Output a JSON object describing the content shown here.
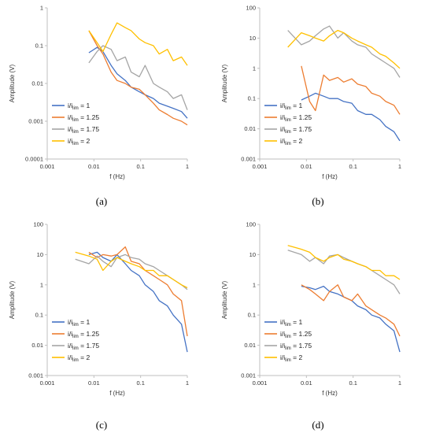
{
  "figure": {
    "captions": [
      "(a)",
      "(b)",
      "(c)",
      "(d)"
    ]
  },
  "legend": [
    {
      "prefix": "i/i",
      "sub": "lim",
      "suffix": " = 1",
      "color": "#4472C4"
    },
    {
      "prefix": "i/i",
      "sub": "lim",
      "suffix": " = 1.25",
      "color": "#ED7D31"
    },
    {
      "prefix": "i/i",
      "sub": "lim",
      "suffix": " = 1.75",
      "color": "#A5A5A5"
    },
    {
      "prefix": "i/i",
      "sub": "lim",
      "suffix": " = 2",
      "color": "#FFC000"
    }
  ],
  "chart_data": [
    {
      "type": "line",
      "xlabel": "f (Hz)",
      "ylabel": "Amplitude (V)",
      "xscale": "log",
      "yscale": "log",
      "xlim": [
        0.001,
        1
      ],
      "ylim": [
        0.0001,
        1
      ],
      "xticks": [
        "0.001",
        "0.01",
        "0.1",
        "1"
      ],
      "yticks": [
        "0.0001",
        "0.001",
        "0.01",
        "0.1",
        "1"
      ],
      "legend_position": "bottom-left",
      "grid": false,
      "series": [
        {
          "name": "i/ilim = 1",
          "color": "#4472C4",
          "x": [
            0.0078,
            0.0117,
            0.0156,
            0.0234,
            0.0313,
            0.0469,
            0.0625,
            0.0938,
            0.125,
            0.1875,
            0.25,
            0.375,
            0.5,
            0.75,
            1.0
          ],
          "y": [
            0.065,
            0.09,
            0.07,
            0.03,
            0.018,
            0.012,
            0.008,
            0.006,
            0.005,
            0.004,
            0.003,
            0.0025,
            0.0022,
            0.0018,
            0.0012
          ]
        },
        {
          "name": "i/ilim = 1.25",
          "color": "#ED7D31",
          "x": [
            0.0078,
            0.0117,
            0.0156,
            0.0234,
            0.0313,
            0.0469,
            0.0625,
            0.0938,
            0.125,
            0.1875,
            0.25,
            0.375,
            0.5,
            0.75,
            1.0
          ],
          "y": [
            0.25,
            0.1,
            0.06,
            0.02,
            0.012,
            0.01,
            0.008,
            0.007,
            0.005,
            0.003,
            0.002,
            0.0015,
            0.0012,
            0.001,
            0.0008
          ]
        },
        {
          "name": "i/ilim = 1.75",
          "color": "#A5A5A5",
          "x": [
            0.0078,
            0.0117,
            0.0156,
            0.0234,
            0.0313,
            0.0469,
            0.0625,
            0.0938,
            0.125,
            0.1875,
            0.25,
            0.375,
            0.5,
            0.75,
            1.0
          ],
          "y": [
            0.035,
            0.07,
            0.1,
            0.08,
            0.04,
            0.05,
            0.02,
            0.015,
            0.03,
            0.01,
            0.008,
            0.006,
            0.004,
            0.005,
            0.002
          ]
        },
        {
          "name": "i/ilim = 2",
          "color": "#FFC000",
          "x": [
            0.0078,
            0.0117,
            0.0156,
            0.0234,
            0.0313,
            0.0469,
            0.0625,
            0.0938,
            0.125,
            0.1875,
            0.25,
            0.375,
            0.5,
            0.75,
            1.0
          ],
          "y": [
            0.25,
            0.12,
            0.07,
            0.2,
            0.4,
            0.3,
            0.25,
            0.15,
            0.12,
            0.1,
            0.06,
            0.08,
            0.04,
            0.05,
            0.03
          ]
        }
      ]
    },
    {
      "type": "line",
      "xlabel": "f (Hz)",
      "ylabel": "Amplitude (V)",
      "xscale": "log",
      "yscale": "log",
      "xlim": [
        0.001,
        1
      ],
      "ylim": [
        0.001,
        100
      ],
      "xticks": [
        "0.001",
        "0.01",
        "0.1",
        "1"
      ],
      "yticks": [
        "0.001",
        "0.01",
        "0.1",
        "1",
        "10",
        "100"
      ],
      "legend_position": "bottom-left",
      "grid": false,
      "series": [
        {
          "name": "i/ilim = 1",
          "color": "#4472C4",
          "x": [
            0.0078,
            0.0117,
            0.0156,
            0.0234,
            0.0313,
            0.0469,
            0.0625,
            0.0938,
            0.125,
            0.1875,
            0.25,
            0.375,
            0.5,
            0.75,
            1.0
          ],
          "y": [
            0.09,
            0.12,
            0.15,
            0.12,
            0.1,
            0.1,
            0.08,
            0.07,
            0.04,
            0.03,
            0.03,
            0.02,
            0.012,
            0.008,
            0.004
          ]
        },
        {
          "name": "i/ilim = 1.25",
          "color": "#ED7D31",
          "x": [
            0.0078,
            0.0117,
            0.0156,
            0.0234,
            0.0313,
            0.0469,
            0.0625,
            0.0938,
            0.125,
            0.1875,
            0.25,
            0.375,
            0.5,
            0.75,
            1.0
          ],
          "y": [
            1.2,
            0.08,
            0.04,
            0.6,
            0.4,
            0.5,
            0.35,
            0.45,
            0.3,
            0.25,
            0.15,
            0.12,
            0.08,
            0.06,
            0.03
          ]
        },
        {
          "name": "i/ilim = 1.75",
          "color": "#A5A5A5",
          "x": [
            0.004,
            0.0078,
            0.0117,
            0.0156,
            0.0234,
            0.0313,
            0.0469,
            0.0625,
            0.0938,
            0.125,
            0.1875,
            0.25,
            0.375,
            0.5,
            0.75,
            1.0
          ],
          "y": [
            18,
            6,
            8,
            12,
            20,
            25,
            10,
            15,
            8,
            6,
            5,
            3,
            2,
            1.5,
            1,
            0.5
          ]
        },
        {
          "name": "i/ilim = 2",
          "color": "#FFC000",
          "x": [
            0.004,
            0.0078,
            0.0117,
            0.0156,
            0.0234,
            0.0313,
            0.0469,
            0.0625,
            0.0938,
            0.125,
            0.1875,
            0.25,
            0.375,
            0.5,
            0.75,
            1.0
          ],
          "y": [
            5,
            15,
            12,
            10,
            8,
            12,
            18,
            15,
            10,
            8,
            6,
            5,
            3,
            2.5,
            1.5,
            1
          ]
        }
      ]
    },
    {
      "type": "line",
      "xlabel": "f (Hz)",
      "ylabel": "Amplitude (V)",
      "xscale": "log",
      "yscale": "log",
      "xlim": [
        0.001,
        1
      ],
      "ylim": [
        0.001,
        100
      ],
      "xticks": [
        "0.001",
        "0.01",
        "0.1",
        "1"
      ],
      "yticks": [
        "0.001",
        "0.01",
        "0.1",
        "1",
        "10",
        "100"
      ],
      "legend_position": "bottom-left",
      "grid": false,
      "series": [
        {
          "name": "i/ilim = 1",
          "color": "#4472C4",
          "x": [
            0.0078,
            0.0117,
            0.0156,
            0.0234,
            0.0313,
            0.0469,
            0.0625,
            0.0938,
            0.125,
            0.1875,
            0.25,
            0.375,
            0.5,
            0.75,
            1.0
          ],
          "y": [
            10,
            12,
            8,
            6,
            10,
            5,
            3,
            2,
            1,
            0.6,
            0.3,
            0.2,
            0.1,
            0.05,
            0.006
          ]
        },
        {
          "name": "i/ilim = 1.25",
          "color": "#ED7D31",
          "x": [
            0.0078,
            0.0117,
            0.0156,
            0.0234,
            0.0313,
            0.0469,
            0.0625,
            0.0938,
            0.125,
            0.1875,
            0.25,
            0.375,
            0.5,
            0.75,
            1.0
          ],
          "y": [
            12,
            8,
            10,
            9,
            10,
            18,
            6,
            5,
            3,
            2,
            1.5,
            1,
            0.5,
            0.3,
            0.02
          ]
        },
        {
          "name": "i/ilim = 1.75",
          "color": "#A5A5A5",
          "x": [
            0.004,
            0.0078,
            0.0117,
            0.0156,
            0.0234,
            0.0313,
            0.0469,
            0.0625,
            0.0938,
            0.125,
            0.1875,
            0.25,
            0.375,
            0.5,
            0.75,
            1.0
          ],
          "y": [
            7,
            5,
            9,
            6,
            4,
            8,
            10,
            8,
            7,
            5,
            4,
            3,
            2,
            1.5,
            1,
            0.7
          ]
        },
        {
          "name": "i/ilim = 2",
          "color": "#FFC000",
          "x": [
            0.004,
            0.0078,
            0.0117,
            0.0156,
            0.0234,
            0.0313,
            0.0469,
            0.0625,
            0.0938,
            0.125,
            0.1875,
            0.25,
            0.375,
            0.5,
            0.75,
            1.0
          ],
          "y": [
            12,
            9,
            7,
            3,
            6,
            8,
            6,
            5,
            4,
            3,
            3,
            2,
            2,
            1.5,
            1,
            0.8
          ]
        }
      ]
    },
    {
      "type": "line",
      "xlabel": "f (Hz)",
      "ylabel": "Amplitude (V)",
      "xscale": "log",
      "yscale": "log",
      "xlim": [
        0.001,
        1
      ],
      "ylim": [
        0.001,
        100
      ],
      "xticks": [
        "0.001",
        "0.01",
        "0.1",
        "1"
      ],
      "yticks": [
        "0.001",
        "0.01",
        "0.1",
        "1",
        "10",
        "100"
      ],
      "legend_position": "bottom-left",
      "grid": false,
      "series": [
        {
          "name": "i/ilim = 1",
          "color": "#4472C4",
          "x": [
            0.0078,
            0.0117,
            0.0156,
            0.0234,
            0.0313,
            0.0469,
            0.0625,
            0.0938,
            0.125,
            0.1875,
            0.25,
            0.375,
            0.5,
            0.75,
            1.0
          ],
          "y": [
            0.9,
            0.8,
            0.7,
            0.9,
            0.6,
            0.5,
            0.4,
            0.3,
            0.2,
            0.15,
            0.1,
            0.08,
            0.05,
            0.03,
            0.006
          ]
        },
        {
          "name": "i/ilim = 1.25",
          "color": "#ED7D31",
          "x": [
            0.0078,
            0.0117,
            0.0156,
            0.0234,
            0.0313,
            0.0469,
            0.0625,
            0.0938,
            0.125,
            0.1875,
            0.25,
            0.375,
            0.5,
            0.75,
            1.0
          ],
          "y": [
            1.0,
            0.7,
            0.5,
            0.3,
            0.6,
            1.0,
            0.4,
            0.3,
            0.5,
            0.2,
            0.15,
            0.1,
            0.08,
            0.05,
            0.02
          ]
        },
        {
          "name": "i/ilim = 1.75",
          "color": "#A5A5A5",
          "x": [
            0.004,
            0.0078,
            0.0117,
            0.0156,
            0.0234,
            0.0313,
            0.0469,
            0.0625,
            0.0938,
            0.125,
            0.1875,
            0.25,
            0.375,
            0.5,
            0.75,
            1.0
          ],
          "y": [
            14,
            10,
            6,
            8,
            5,
            9,
            10,
            8,
            6,
            5,
            4,
            3,
            2,
            1.5,
            1,
            0.5
          ]
        },
        {
          "name": "i/ilim = 2",
          "color": "#FFC000",
          "x": [
            0.004,
            0.0078,
            0.0117,
            0.0156,
            0.0234,
            0.0313,
            0.0469,
            0.0625,
            0.0938,
            0.125,
            0.1875,
            0.25,
            0.375,
            0.5,
            0.75,
            1.0
          ],
          "y": [
            20,
            15,
            12,
            8,
            6,
            8,
            10,
            7,
            6,
            5,
            4,
            3,
            3,
            2,
            2,
            1.5
          ]
        }
      ]
    }
  ]
}
